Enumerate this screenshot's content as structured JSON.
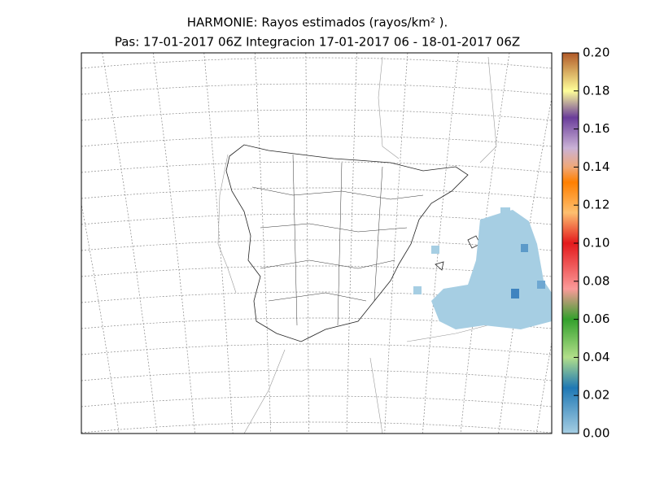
{
  "header": {
    "title": "HARMONIE: Rayos estimados  (rayos/km² ).",
    "subtitle": "Pas: 17-01-2017 06Z Integracion 17-01-2017 06 - 18-01-2017 06Z"
  },
  "colorbar": {
    "range": [
      0,
      0.2
    ],
    "ticks": [
      {
        "value": 0,
        "label": "0.00"
      },
      {
        "value": 0.02,
        "label": "0.02"
      },
      {
        "value": 0.04,
        "label": "0.04"
      },
      {
        "value": 0.06,
        "label": "0.06"
      },
      {
        "value": 0.08,
        "label": "0.08"
      },
      {
        "value": 0.1,
        "label": "0.10"
      },
      {
        "value": 0.12,
        "label": "0.12"
      },
      {
        "value": 0.14,
        "label": "0.14"
      },
      {
        "value": 0.16,
        "label": "0.16"
      },
      {
        "value": 0.18,
        "label": "0.18"
      },
      {
        "value": 0.2,
        "label": "0.20"
      }
    ]
  }
}
